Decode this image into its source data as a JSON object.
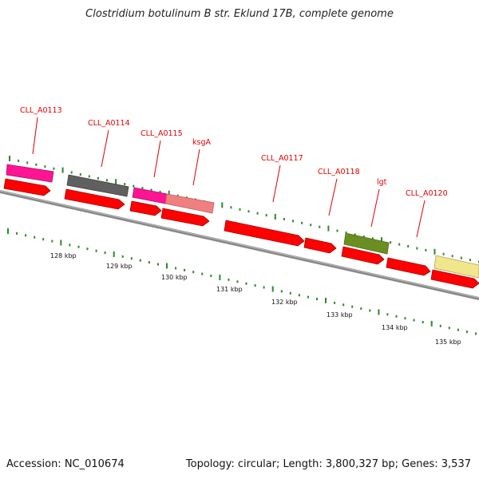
{
  "title": "Clostridium botulinum B str. Eklund 17B, complete genome",
  "footer": {
    "accession": "Accession: NC_010674",
    "summary": "Topology: circular; Length: 3,800,327 bp; Genes: 3,537"
  },
  "genes": [
    {
      "name": "CLL_A0113"
    },
    {
      "name": "CLL_A0114"
    },
    {
      "name": "CLL_A0115"
    },
    {
      "name": "ksgA"
    },
    {
      "name": "CLL_A0117"
    },
    {
      "name": "CLL_A0118"
    },
    {
      "name": "lgt"
    },
    {
      "name": "CLL_A0120"
    }
  ],
  "kbp_labels": [
    "128 kbp",
    "129 kbp",
    "130 kbp",
    "131 kbp",
    "132 kbp",
    "133 kbp",
    "134 kbp",
    "135 kbp"
  ],
  "colors": {
    "cds_red": "#ff0000",
    "magenta": "#ff1493",
    "gray": "#606060",
    "pink": "#f08080",
    "olive": "#6b8e23",
    "khaki": "#f0e68c",
    "backbone": "#777777",
    "gc_tick": "#2a8a2a",
    "label": "#e00000"
  }
}
